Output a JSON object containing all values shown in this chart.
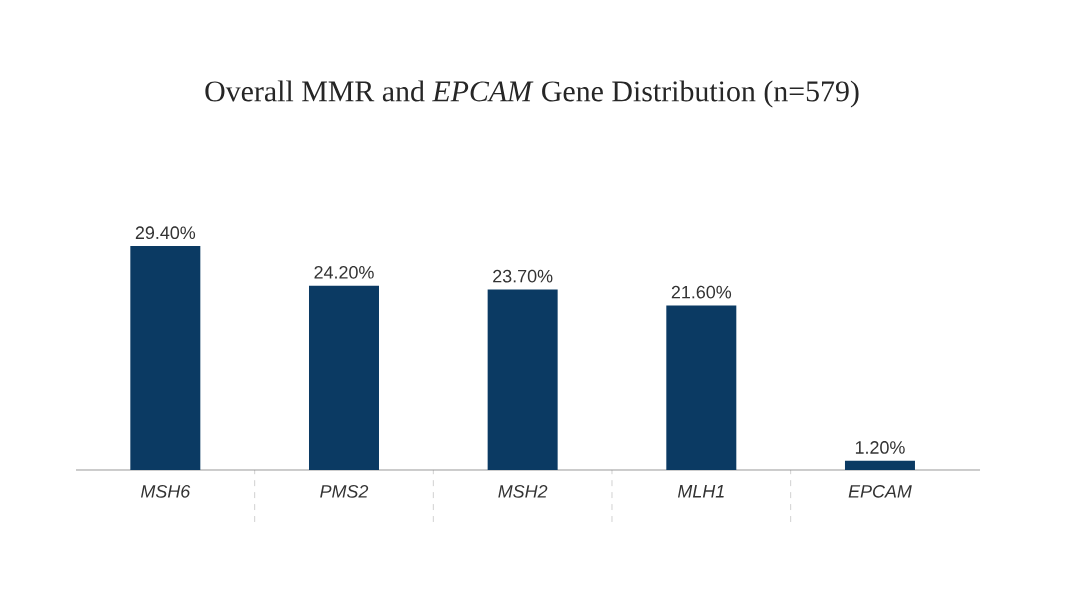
{
  "chart_data": {
    "type": "bar",
    "title": "Overall MMR and *EPCAM* Gene Distribution (n=579)",
    "categories": [
      "MSH6",
      "PMS2",
      "MSH2",
      "MLH1",
      "EPCAM"
    ],
    "values": [
      29.4,
      24.2,
      23.7,
      21.6,
      1.2
    ],
    "value_labels": [
      "29.40%",
      "24.20%",
      "23.70%",
      "21.60%",
      "1.20%"
    ],
    "color": "#0b3a63"
  }
}
